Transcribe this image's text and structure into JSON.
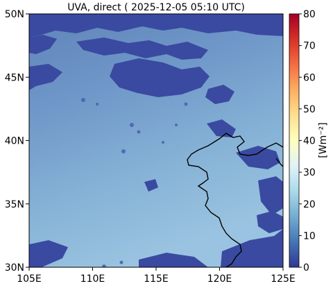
{
  "title": "UVA, direct ( 2025-12-05 05:10 UTC)",
  "map": {
    "lon_range": [
      105,
      125
    ],
    "lat_range": [
      30,
      50
    ],
    "x_ticks": [
      "105E",
      "110E",
      "115E",
      "120E",
      "125E"
    ],
    "y_ticks": [
      "30N",
      "35N",
      "40N",
      "45N",
      "50N"
    ]
  },
  "colorbar": {
    "label": "[Wm⁻²]",
    "range": [
      0,
      80
    ],
    "ticks": [
      "0",
      "10",
      "20",
      "30",
      "40",
      "50",
      "60",
      "70",
      "80"
    ],
    "colormap": "RdYlBu_r"
  }
}
